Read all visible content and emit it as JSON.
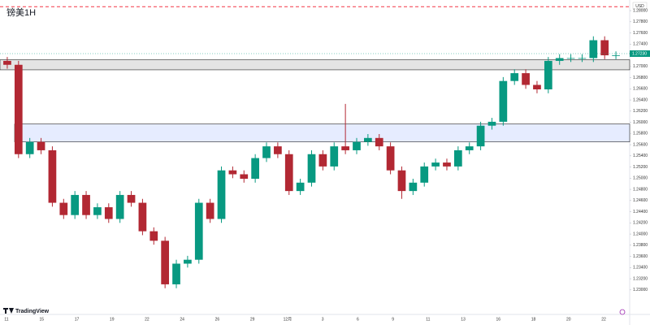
{
  "chart_data": {
    "type": "candlestick",
    "title": "镑美1H",
    "currency": "USD",
    "brand": "TradingView",
    "up_color": "#089981",
    "down_color": "#b22833",
    "ylim": [
      1.2259,
      1.2819
    ],
    "yticks": [
      {
        "value": 1.23,
        "label": "1.23000"
      },
      {
        "value": 1.232,
        "label": "1.23200"
      },
      {
        "value": 1.234,
        "label": "1.23400"
      },
      {
        "value": 1.236,
        "label": "1.23600"
      },
      {
        "value": 1.238,
        "label": "1.23800"
      },
      {
        "value": 1.24,
        "label": "1.24000"
      },
      {
        "value": 1.242,
        "label": "1.24200"
      },
      {
        "value": 1.244,
        "label": "1.24400"
      },
      {
        "value": 1.246,
        "label": "1.24600"
      },
      {
        "value": 1.248,
        "label": "1.24800"
      },
      {
        "value": 1.25,
        "label": "1.25000"
      },
      {
        "value": 1.252,
        "label": "1.25200"
      },
      {
        "value": 1.254,
        "label": "1.25400"
      },
      {
        "value": 1.256,
        "label": "1.25600"
      },
      {
        "value": 1.258,
        "label": "1.25800"
      },
      {
        "value": 1.26,
        "label": "1.26000"
      },
      {
        "value": 1.262,
        "label": "1.26200"
      },
      {
        "value": 1.264,
        "label": "1.26400"
      },
      {
        "value": 1.266,
        "label": "1.26600"
      },
      {
        "value": 1.268,
        "label": "1.26800"
      },
      {
        "value": 1.27,
        "label": "1.27000"
      },
      {
        "value": 1.272,
        "label": "1.27200"
      },
      {
        "value": 1.274,
        "label": "1.27400"
      },
      {
        "value": 1.276,
        "label": "1.27600"
      },
      {
        "value": 1.278,
        "label": "1.27800"
      },
      {
        "value": 1.28,
        "label": "1.28000"
      }
    ],
    "x_labels": [
      "11",
      "15",
      "17",
      "19",
      "22",
      "24",
      "26",
      "29",
      "12月",
      "3",
      "6",
      "9",
      "11",
      "13",
      "16",
      "18",
      "20",
      "22"
    ],
    "alert_line": {
      "value": 1.2807,
      "color": "#f23645"
    },
    "zones": [
      {
        "from": 1.2694,
        "to": 1.2712,
        "color": "#d9d9d9"
      },
      {
        "from": 1.2565,
        "to": 1.2597,
        "color": "#dbe4ff"
      }
    ],
    "current_price": {
      "value": 1.2723,
      "label": "1.27230",
      "color": "#089981"
    },
    "ohlc": {
      "open": [
        1.271,
        1.2703,
        1.2543,
        1.2565,
        1.255,
        1.2456,
        1.2434,
        1.247,
        1.2434,
        1.2448,
        1.2427,
        1.247,
        1.2456,
        1.2405,
        1.2388,
        1.231,
        1.2347,
        1.2354,
        1.2456,
        1.2427,
        1.2514,
        1.2507,
        1.2499,
        1.2536,
        1.2557,
        1.2543,
        1.2477,
        1.2492,
        1.2543,
        1.2521,
        1.2557,
        1.255,
        1.2565,
        1.2572,
        1.2557,
        1.2514,
        1.2477,
        1.2492,
        1.2521,
        1.2528,
        1.2521,
        1.255,
        1.2557,
        1.2594,
        1.2601,
        1.2674,
        1.2688,
        1.2667,
        1.2659,
        1.271,
        1.2715,
        1.2715,
        1.2715,
        1.2747,
        1.272
      ],
      "high": [
        1.2717,
        1.271,
        1.2572,
        1.2572,
        1.2557,
        1.2463,
        1.2477,
        1.2477,
        1.2455,
        1.2455,
        1.2477,
        1.2477,
        1.2463,
        1.2412,
        1.2395,
        1.2354,
        1.2361,
        1.2463,
        1.2463,
        1.2521,
        1.2521,
        1.2514,
        1.2543,
        1.2564,
        1.2564,
        1.255,
        1.2499,
        1.255,
        1.255,
        1.2564,
        1.2633,
        1.2572,
        1.2579,
        1.2579,
        1.2564,
        1.2521,
        1.2499,
        1.2528,
        1.2535,
        1.2535,
        1.2557,
        1.2564,
        1.2601,
        1.2608,
        1.2681,
        1.2695,
        1.2695,
        1.2674,
        1.2717,
        1.2722,
        1.2722,
        1.2722,
        1.2754,
        1.2754,
        1.2727
      ],
      "low": [
        1.2696,
        1.2536,
        1.2536,
        1.2543,
        1.2449,
        1.2427,
        1.2427,
        1.2427,
        1.2427,
        1.242,
        1.242,
        1.2449,
        1.2398,
        1.2381,
        1.2303,
        1.2303,
        1.234,
        1.2347,
        1.242,
        1.242,
        1.25,
        1.2492,
        1.2492,
        1.2529,
        1.2536,
        1.247,
        1.247,
        1.2485,
        1.2514,
        1.2514,
        1.2543,
        1.2543,
        1.2558,
        1.255,
        1.2507,
        1.2463,
        1.247,
        1.2485,
        1.2514,
        1.2514,
        1.2514,
        1.2543,
        1.255,
        1.2587,
        1.2594,
        1.2667,
        1.266,
        1.2652,
        1.2652,
        1.2703,
        1.2708,
        1.2708,
        1.2708,
        1.2713,
        1.2713
      ],
      "close": [
        1.2703,
        1.2543,
        1.2565,
        1.255,
        1.2456,
        1.2434,
        1.247,
        1.2434,
        1.2448,
        1.2427,
        1.247,
        1.2456,
        1.2405,
        1.2388,
        1.231,
        1.2347,
        1.2354,
        1.2456,
        1.2427,
        1.2514,
        1.2507,
        1.2499,
        1.2536,
        1.2557,
        1.2543,
        1.2477,
        1.2492,
        1.2543,
        1.2521,
        1.2557,
        1.255,
        1.2565,
        1.2572,
        1.2557,
        1.2514,
        1.2477,
        1.2492,
        1.2521,
        1.2528,
        1.2521,
        1.255,
        1.2557,
        1.2594,
        1.2601,
        1.2674,
        1.2688,
        1.2667,
        1.2659,
        1.271,
        1.2715,
        1.2715,
        1.2715,
        1.2747,
        1.272,
        1.272
      ]
    }
  }
}
